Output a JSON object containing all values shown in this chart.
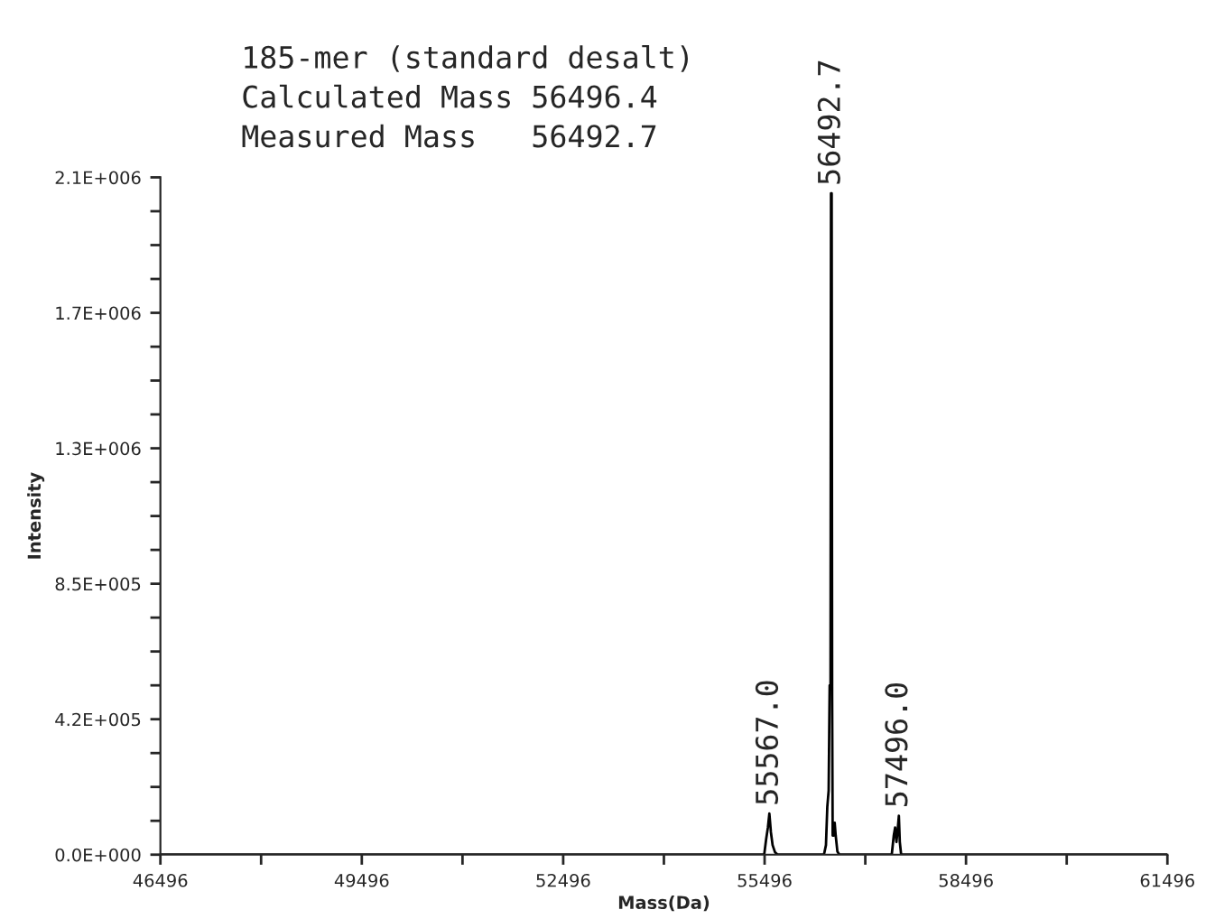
{
  "chart_data": {
    "type": "line",
    "xlabel": "Mass(Da)",
    "ylabel": "Intensity",
    "annotations": [
      "185-mer (standard desalt)",
      "Calculated Mass 56496.4",
      "Measured Mass   56492.7",
      {
        "text": "55567.0",
        "x": 55567,
        "y": 129000
      },
      {
        "text": "56492.7",
        "x": 56492.7,
        "y": 2070000
      },
      {
        "text": "57496.0",
        "x": 57496,
        "y": 122000
      }
    ],
    "series": [
      {
        "color": "#000000",
        "x": [
          46496,
          55490,
          55520,
          55545,
          55567,
          55590,
          55615,
          55650,
          55690,
          56380,
          56410,
          56430,
          56450,
          56465,
          56478,
          56485,
          56495,
          56502,
          56510,
          56525,
          56540,
          56555,
          56580,
          56610,
          57390,
          57420,
          57440,
          57460,
          57475,
          57496,
          57510,
          57530,
          61496
        ],
        "values": [
          0,
          0,
          50000,
          85000,
          129000,
          70000,
          30000,
          8000,
          0,
          0,
          30000,
          150000,
          200000,
          530000,
          530000,
          2070000,
          2070000,
          500000,
          60000,
          60000,
          100000,
          60000,
          10000,
          0,
          0,
          60000,
          85000,
          40000,
          70000,
          122000,
          40000,
          0,
          0
        ]
      }
    ],
    "xlim": [
      46496,
      61496
    ],
    "xticks": [
      46496,
      {
        "value": 47996,
        "label": null
      },
      49496,
      {
        "value": 50996,
        "label": null
      },
      52496,
      {
        "value": 53996,
        "label": null
      },
      55496,
      {
        "value": 56996,
        "label": null
      },
      58496,
      {
        "value": 59996,
        "label": null
      },
      61496
    ],
    "ylim": [
      0,
      2120000
    ],
    "yticks": [
      {
        "value": 0,
        "label": "0.0E+000"
      },
      {
        "value": 106000,
        "label": null
      },
      {
        "value": 212000,
        "label": null
      },
      {
        "value": 318000,
        "label": null
      },
      {
        "value": 424000,
        "label": "4.2E+005"
      },
      {
        "value": 530000,
        "label": null
      },
      {
        "value": 636000,
        "label": null
      },
      {
        "value": 742000,
        "label": null
      },
      {
        "value": 848000,
        "label": "8.5E+005"
      },
      {
        "value": 954000,
        "label": null
      },
      {
        "value": 1060000,
        "label": null
      },
      {
        "value": 1166000,
        "label": null
      },
      {
        "value": 1272000,
        "label": "1.3E+006"
      },
      {
        "value": 1378000,
        "label": null
      },
      {
        "value": 1484000,
        "label": null
      },
      {
        "value": 1590000,
        "label": null
      },
      {
        "value": 1696000,
        "label": "1.7E+006"
      },
      {
        "value": 1802000,
        "label": null
      },
      {
        "value": 1908000,
        "label": null
      },
      {
        "value": 2014000,
        "label": null
      },
      {
        "value": 2120000,
        "label": "2.1E+006"
      }
    ],
    "grid": false,
    "legend": false
  }
}
